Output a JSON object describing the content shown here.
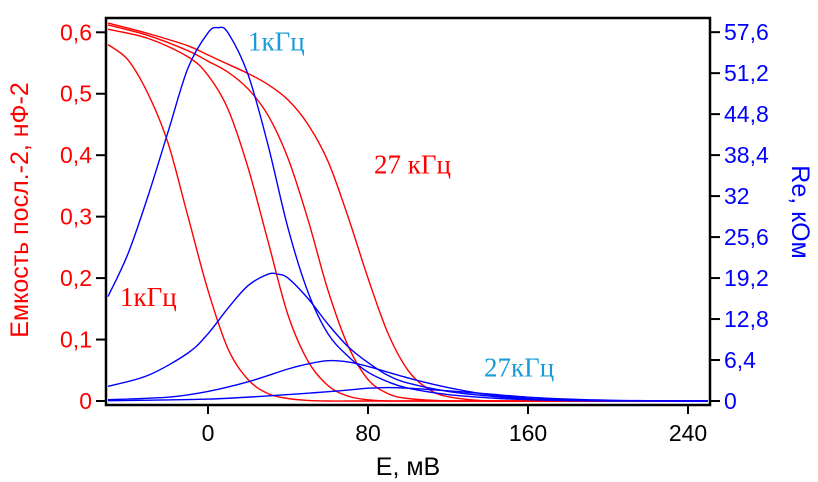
{
  "chart_data": {
    "type": "line",
    "xlabel": "E, мВ",
    "ylabel_left": "Емкость посл.-2, нФ-2",
    "ylabel_right": "Re, кОм",
    "xlim": [
      -50,
      250
    ],
    "ylim_left": [
      0,
      0.62
    ],
    "ylim_right": [
      0,
      59.5
    ],
    "x_ticks": [
      0,
      80,
      160,
      240
    ],
    "x_tick_labels": [
      "0",
      "80",
      "160",
      "240"
    ],
    "y_left_ticks": [
      0,
      0.1,
      0.2,
      0.3,
      0.4,
      0.5,
      0.6
    ],
    "y_left_tick_labels": [
      "0",
      "0,1",
      "0,2",
      "0,3",
      "0,4",
      "0,5",
      "0,6"
    ],
    "y_right_ticks": [
      0,
      6.4,
      12.8,
      19.2,
      25.6,
      32,
      38.4,
      44.8,
      51.2,
      57.6
    ],
    "y_right_tick_labels": [
      "0",
      "6,4",
      "12,8",
      "19,2",
      "25,6",
      "32",
      "38,4",
      "44,8",
      "51,2",
      "57,6"
    ],
    "grid": false,
    "colors": {
      "capacitance": "#ff0000",
      "resistance": "#0000ff",
      "annot_resistance": "#1a9bd7"
    },
    "annotations": [
      {
        "text": "1кГц",
        "color": "#1a9bd7",
        "x": 20,
        "y": 0.57
      },
      {
        "text": "27 кГц",
        "color": "#ff0000",
        "x": 83,
        "y": 0.37
      },
      {
        "text": "1кГц",
        "color": "#ff0000",
        "x": -44,
        "y": 0.155
      },
      {
        "text": "27кГц",
        "color": "#1a9bd7",
        "x": 138,
        "y": 0.04
      }
    ],
    "series_capacitance": [
      {
        "x": [
          -50,
          -40,
          -30,
          -20,
          -10,
          0,
          10,
          20,
          30,
          40,
          50,
          60,
          70,
          80,
          90,
          100,
          110,
          120,
          140,
          160,
          200,
          250
        ],
        "y": [
          0.58,
          0.555,
          0.5,
          0.42,
          0.3,
          0.18,
          0.085,
          0.035,
          0.012,
          0.004,
          0.001,
          0,
          0,
          0,
          0,
          0,
          0,
          0,
          0,
          0,
          0,
          0
        ]
      },
      {
        "x": [
          -50,
          -30,
          -10,
          0,
          10,
          20,
          30,
          40,
          50,
          60,
          70,
          80,
          90,
          100,
          120,
          140,
          160,
          200,
          250
        ],
        "y": [
          0.605,
          0.59,
          0.56,
          0.53,
          0.475,
          0.38,
          0.26,
          0.14,
          0.065,
          0.025,
          0.008,
          0.002,
          0,
          0,
          0,
          0,
          0,
          0,
          0
        ]
      },
      {
        "x": [
          -50,
          -30,
          -10,
          0,
          10,
          20,
          30,
          40,
          50,
          60,
          70,
          80,
          90,
          100,
          120,
          140,
          160,
          200,
          250
        ],
        "y": [
          0.612,
          0.595,
          0.57,
          0.553,
          0.535,
          0.508,
          0.465,
          0.395,
          0.295,
          0.18,
          0.09,
          0.035,
          0.012,
          0.004,
          0,
          0,
          0,
          0,
          0
        ]
      },
      {
        "x": [
          -50,
          -30,
          -10,
          0,
          10,
          20,
          30,
          40,
          50,
          60,
          70,
          80,
          90,
          100,
          110,
          120,
          140,
          160,
          200,
          250
        ],
        "y": [
          0.615,
          0.598,
          0.578,
          0.563,
          0.548,
          0.533,
          0.515,
          0.49,
          0.45,
          0.39,
          0.3,
          0.2,
          0.11,
          0.05,
          0.02,
          0.007,
          0,
          0,
          0,
          0
        ]
      }
    ],
    "series_resistance": [
      {
        "x": [
          -50,
          -40,
          -30,
          -20,
          -10,
          0,
          5,
          10,
          20,
          30,
          40,
          50,
          60,
          70,
          80,
          90,
          100,
          120,
          140,
          160,
          200,
          250
        ],
        "y": [
          16.3,
          23,
          32,
          42,
          52,
          57.5,
          58.3,
          57.5,
          51,
          40,
          27,
          17,
          10.5,
          7,
          4.5,
          3,
          2,
          1,
          0.5,
          0.2,
          0,
          0
        ]
      },
      {
        "x": [
          -50,
          -30,
          -10,
          0,
          10,
          20,
          30,
          35,
          40,
          50,
          60,
          70,
          80,
          90,
          100,
          120,
          140,
          160,
          200,
          250
        ],
        "y": [
          2.3,
          4,
          7.5,
          10.5,
          14.5,
          18,
          19.8,
          19.8,
          19.2,
          16,
          12,
          8.5,
          6,
          4,
          2.8,
          1.5,
          0.8,
          0.3,
          0.05,
          0
        ]
      },
      {
        "x": [
          -50,
          -20,
          0,
          20,
          40,
          50,
          60,
          70,
          80,
          100,
          120,
          140,
          160,
          180,
          200,
          250
        ],
        "y": [
          0.2,
          0.6,
          1.5,
          3,
          5,
          5.8,
          6.3,
          6.1,
          5.4,
          3.6,
          2.1,
          1,
          0.4,
          0.15,
          0.05,
          0
        ]
      },
      {
        "x": [
          -50,
          0,
          40,
          70,
          80,
          90,
          100,
          110,
          120,
          140,
          160,
          180,
          200,
          220,
          250
        ],
        "y": [
          0.05,
          0.3,
          1,
          1.7,
          2,
          2.1,
          2,
          1.8,
          1.6,
          1.1,
          0.6,
          0.3,
          0.12,
          0.04,
          0
        ]
      }
    ]
  }
}
